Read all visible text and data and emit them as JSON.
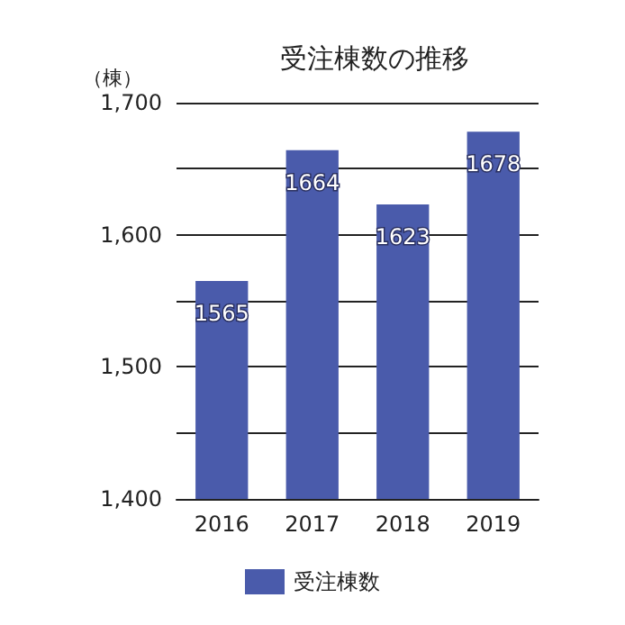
{
  "chart_data": {
    "type": "bar",
    "title": "受注棟数の推移",
    "ylabel": "（棟）",
    "categories": [
      "2016",
      "2017",
      "2018",
      "2019"
    ],
    "series": [
      {
        "name": "受注棟数",
        "color": "#4a5bab",
        "values": [
          1565,
          1664,
          1623,
          1678
        ]
      }
    ],
    "ylim": [
      1400,
      1700
    ],
    "yticks": [
      {
        "value": 1400,
        "label": "1,400"
      },
      {
        "value": 1450,
        "label": null
      },
      {
        "value": 1500,
        "label": "1,500"
      },
      {
        "value": 1550,
        "label": null
      },
      {
        "value": 1600,
        "label": "1,600"
      },
      {
        "value": 1650,
        "label": null
      },
      {
        "value": 1700,
        "label": "1,700"
      }
    ],
    "grid": "y",
    "legend": "bottom",
    "data_labels": true
  }
}
